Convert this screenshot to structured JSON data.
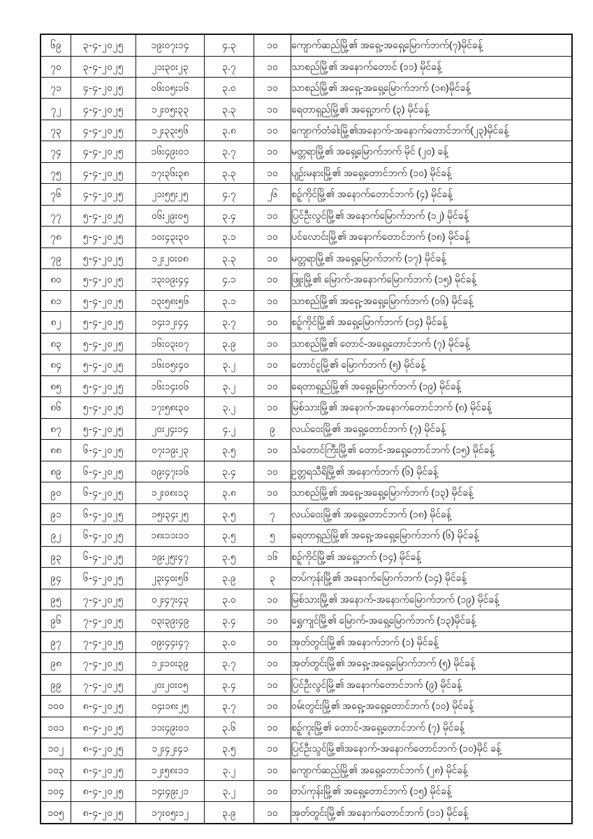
{
  "document": {
    "language": "Burmese",
    "content_type": "earthquake-records-table",
    "text_color": "#0a0a0a",
    "border_color": "#141414",
    "background_color": "#ffffff"
  },
  "table": {
    "column_keys": [
      "no",
      "date",
      "time",
      "magnitude",
      "depth",
      "location"
    ],
    "rows": [
      [
        "၆၉",
        "၃-၄-၂၀၂၅",
        "၁၉း၀၇း၁၄",
        "၄.၃",
        "၁၀",
        "ကျောက်ဆည်မြို့၏ အရှေ့-အရှေ့မြောက်ဘက်(၇)မိုင်ခန့်"
      ],
      [
        "၇၀",
        "၃-၄-၂၀၂၅",
        "၂၁း၃၀း၂၃",
        "၃.၇",
        "၁၀",
        "သာစည်မြို့၏ အနောက်တောင် (၁၁) မိုင်ခန့်"
      ],
      [
        "၇၁",
        "၄-၄-၂၀၂၅",
        "၀၆း၀၅း၁၆",
        "၃.၀",
        "၁၀",
        "သာစည်မြို့၏ အရှေ့-အရှေ့မြောက်ဘက် (၁၈)မိုင်ခန့်"
      ],
      [
        "၇၂",
        "၄-၄-၂၀၂၅",
        "၁၂း၀၅း၃၃",
        "၃.၃",
        "၁၀",
        "ရေတာရှည်မြို့၏ အရှေ့ဘက် (၃) မိုင်ခန့်"
      ],
      [
        "၇၃",
        "၄-၄-၂၀၂၅",
        "၁၂း၃၃း၅၆",
        "၃.၈",
        "၁၀",
        "ကျောက်တံခါးမြို့၏အနောက်-အနောက်တောင်ဘက်(၂၃)မိုင်ခန့်"
      ],
      [
        "၇၄",
        "၄-၄-၂၀၂၅",
        "၁၆း၄၉း၀၁",
        "၃.၇",
        "၁၀",
        "မတ္တရာမြို့၏ အရှေ့မြောက်ဘက် မိုင် (၂၀) ခန့်"
      ],
      [
        "၇၅",
        "၄-၄-၂၀၂၅",
        "၁၇း၃၆း၃၈",
        "၃.၃",
        "၁၀",
        "ပျဉ်းမနားမြို့၏ အရှေ့တောင်ဘက် (၁၀) မိုင်ခန့်"
      ],
      [
        "၇၆",
        "၄-၄-၂၀၂၅",
        "၂၁း၅၅း၂၅",
        "၄.၇",
        "၂၆",
        "စဉ့်ကိုင်မြို့၏ အနောက်တောင်ဘက် (၄) မိုင်ခန့်"
      ],
      [
        "၇၇",
        "၅-၄-၂၀၂၅",
        "၀၆း၂၉း၀၅",
        "၃.၄",
        "၁၀",
        "ပြင်ဦးလွင်မြို့၏ အနောက်မြောက်ဘက် (၁၂) မိုင်ခန့်"
      ],
      [
        "၇၈",
        "၅-၄-၂၀၂၅",
        "၁၀း၄၃း၃၀",
        "၃.၁",
        "၁၀",
        "ပင်လောင်းမြို့၏ အနောက်တောင်ဘက် (၁၈) မိုင်ခန့်"
      ],
      [
        "၇၉",
        "၅-၄-၂၀၂၅",
        "၁၂း၂၀း၀၈",
        "၃.၃",
        "၁၀",
        "မတ္တရာမြို့၏ အရှေ့မြောက်ဘက် (၁၇) မိုင်ခန့်"
      ],
      [
        "၈၀",
        "၅-၄-၂၀၂၅",
        "၁၃း၀၉း၄၄",
        "၄.၁",
        "၁၀",
        "ဖြူးမြို့၏ မြောက်-အနောက်မြောက်ဘက် (၁၅) မိုင်ခန့်"
      ],
      [
        "၈၁",
        "၅-၄-၂၀၂၅",
        "၁၃း၅၈း၅၆",
        "၃.၁",
        "၁၀",
        "သာစည်မြို့၏ အရှေ့-အရှေ့မြောက်ဘက် (၁၆) မိုင်ခန့်"
      ],
      [
        "၈၂",
        "၅-၄-၂၀၂၅",
        "၁၄း၁၂း၄၄",
        "၃.၇",
        "၁၀",
        "စဉ့်ကိုင်မြို့၏ အရှေ့မြောက်ဘက် (၁၄) မိုင်ခန့်"
      ],
      [
        "၈၃",
        "၅-၄-၂၀၂၅",
        "၁၆း၀၃း၀၇",
        "၃.၉",
        "၁၀",
        "သာစည်မြို့၏ တောင်-အရှေ့တောင်ဘက် (၇) မိုင်ခန့်"
      ],
      [
        "၈၄",
        "၅-၄-၂၀၂၅",
        "၁၆း၀၅း၄၀",
        "၃.၂",
        "၁၀",
        "တောင်ငူမြို့၏ မြောက်ဘက် (၅) မိုင်ခန့်"
      ],
      [
        "၈၅",
        "၅-၄-၂၀၂၅",
        "၁၆း၁၄း၀၆",
        "၃.၂",
        "၁၀",
        "ရေတာရှည်မြို့၏ အရှေ့မြောက်ဘက် (၁၉) မိုင်ခန့်"
      ],
      [
        "၈၆",
        "၅-၄-၂၀၂၅",
        "၁၇း၅၈း၃၀",
        "၃.၂",
        "၁၀",
        "မြစ်သားမြို့၏ အနောက်-အနောက်တောင်ဘက် (၈) မိုင်ခန့်"
      ],
      [
        "၈၇",
        "၅-၄-၂၀၂၅",
        "၂၀း၂၄း၁၄",
        "၄.၂",
        "၉",
        "လယ်ဝေးမြို့၏ အရှေ့တောင်ဘက် (၇) မိုင်ခန့်"
      ],
      [
        "၈၈",
        "၆-၄-၂၀၂၅",
        "၀၇း၁၉း၂၃",
        "၃.၅",
        "၁၀",
        "သံတောင်ကြီးမြို့၏ တောင်-အရှေ့တောင်ဘက် (၁၅) မိုင်ခန့်"
      ],
      [
        "၈၉",
        "၆-၄-၂၀၂၅",
        "၀၉း၄၇း၁၆",
        "၃.၄",
        "၁၀",
        "ဥတ္တရသီရိမြို့၏ အနောက်ဘက် (၆) မိုင်ခန့်"
      ],
      [
        "၉၀",
        "၆-၄-၂၀၂၅",
        "၁၂း၀၈း၁၃",
        "၃.၈",
        "၁၀",
        "သာစည်မြို့၏ အရှေ့-အရှေ့မြောက်ဘက် (၁၃) မိုင်ခန့်"
      ],
      [
        "၉၁",
        "၆-၄-၂၀၂၅",
        "၁၅း၃၄း၂၅",
        "၃.၅",
        "၇",
        "လယ်ဝေးမြို့၏ အရှေ့တောင်ဘက် (၁၈) မိုင်ခန့်"
      ],
      [
        "၉၂",
        "၆-၄-၂၀၂၅",
        "၁၈း၁၁း၁၁",
        "၃.၅",
        "၅",
        "ရေတာရှည်မြို့၏ အရှေ့-အရှေ့မြောက်ဘက် (၆) မိုင်ခန့်"
      ],
      [
        "၉၃",
        "၆-၄-၂၀၂၅",
        "၁၉း၂၅း၄၇",
        "၃.၅",
        "၁၆",
        "စဉ့်ကိုင်မြို့၏ အရှေ့ဘက် (၁၄) မိုင်ခန့်"
      ],
      [
        "၉၄",
        "၆-၄-၂၀၂၅",
        "၂၃း၄၀း၅၆",
        "၃.၉",
        "၃",
        "တပ်ကုန်းမြို့၏ အနောက်မြောက်ဘက် (၁၄) မိုင်ခန့်"
      ],
      [
        "၉၅",
        "၇-၄-၂၀၂၅",
        "၀၂း၄၇း၄၃",
        "၃.၀",
        "၁၀",
        "မြစ်သားမြို့၏ အနောက်-အနောက်မြောက်ဘက် (၁၉) မိုင်ခန့်"
      ],
      [
        "၉၆",
        "၇-၄-၂၀၂၅",
        "၀၃း၃၉း၄၉",
        "၃.၄",
        "၁၀",
        "ရွှေကျင်မြို့၏ မြောက်-အရှေ့မြောက်ဘက် (၁၃)မိုင်ခန့်"
      ],
      [
        "၉၇",
        "၇-၄-၂၀၂၅",
        "၀၉း၄၄း၄၇",
        "၃.၀",
        "၁၀",
        "အုတ်တွင်းမြို့၏ အနောက်ဘက် (၁) မိုင်ခန့်"
      ],
      [
        "၉၈",
        "၇-၄-၂၀၂၅",
        "၁၂း၁၀း၃၉",
        "၃.၇",
        "၁၀",
        "အုတ်တွင်းမြို့၏ အရှေ့-အရှေ့မြောက်ဘက် (၅) မိုင်ခန့်"
      ],
      [
        "၉၉",
        "၇-၄-၂၀၂၅",
        "၂၀း၂၀း၀၅",
        "၃.၄",
        "၁၀",
        "ပြင်ဦးလွင်မြို့၏ အနောက်တောင်ဘက် (၉) မိုင်ခန့်"
      ],
      [
        "၁၀၀",
        "၈-၄-၂၀၂၅",
        "၀၄း၁၈း၂၅",
        "၃.၇",
        "၁၀",
        "ဝမ်းတွင်းမြို့၏ အရှေ့-အရှေ့တောင်ဘက် (၁၀) မိုင်ခန့်"
      ],
      [
        "၁၀၁",
        "၈-၄-၂၀၂၅",
        "၁၁း၄၉း၀၁",
        "၃.၆",
        "၁၀",
        "စဉ့်ကူးမြို့၏ တောင်-အရှေ့တောင်ဘက် (၇) မိုင်ခန့်"
      ],
      [
        "၁၀၂",
        "၈-၄-၂၀၂၅",
        "၁၂း၄၂း၄၁",
        "၃.၅",
        "၁၀",
        "ပြင်ဦးသွင်မြို့၏အနောက်-အနောက်တောင်ဘက် (၁၀)မိုင် ခန့်"
      ],
      [
        "၁၀၃",
        "၈-၄-၂၀၂၅",
        "၁၂း၅၈း၁၁",
        "၃.၂",
        "၁၀",
        "ကျောက်ဆည်မြို့၏ အရှေ့တောင်ဘက် (၂၈) မိုင်ခန့်"
      ],
      [
        "၁၀၄",
        "၈-၄-၂၀၂၅",
        "၁၄း၄၉း၂၁",
        "၃.၂",
        "၁၀",
        "တပ်ကုန်းမြို့၏ အရှေ့တောင်ဘက် (၁၅) မိုင်ခန့်"
      ],
      [
        "၁၀၅",
        "၈-၄-၂၀၂၅",
        "၁၇း၀၅း၁၂",
        "၃.၉",
        "၁၀",
        "အုတ်တွင်းမြို့၏ အနောက်တောင်ဘက် (၁၁) မိုင်ခန့်"
      ]
    ]
  }
}
